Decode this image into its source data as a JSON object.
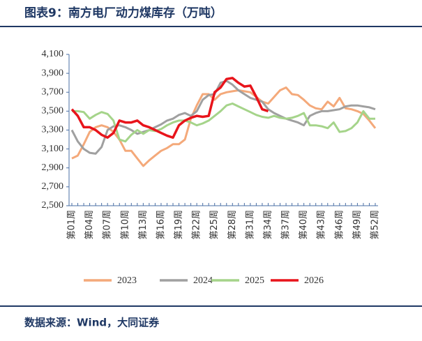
{
  "chart_data": {
    "type": "line",
    "title": "图表9：南方电厂动力煤库存（万吨）",
    "source": "数据来源：Wind，大同证券",
    "categories": [
      "第01周",
      null,
      null,
      "第04周",
      null,
      null,
      "第07周",
      null,
      null,
      "第10周",
      null,
      null,
      "第13周",
      null,
      null,
      "第16周",
      null,
      null,
      "第19周",
      null,
      null,
      "第22周",
      null,
      null,
      "第25周",
      null,
      null,
      "第28周",
      null,
      null,
      "第31周",
      null,
      null,
      "第34周",
      null,
      null,
      "第37周",
      null,
      null,
      "第40周",
      null,
      null,
      "第43周",
      null,
      null,
      "第46周",
      null,
      null,
      "第49周",
      null,
      null,
      "第52周"
    ],
    "ylim": [
      2500,
      4100
    ],
    "yticks": [
      {
        "value": 2500,
        "label": "2,500"
      },
      {
        "value": 2700,
        "label": "2,700"
      },
      {
        "value": 2900,
        "label": "2,900"
      },
      {
        "value": 3100,
        "label": "3,100"
      },
      {
        "value": 3300,
        "label": "3,300"
      },
      {
        "value": 3500,
        "label": "3,500"
      },
      {
        "value": 3700,
        "label": "3,700"
      },
      {
        "value": 3900,
        "label": "3,900"
      },
      {
        "value": 4100,
        "label": "4,100"
      }
    ],
    "series": [
      {
        "name": "2023",
        "color": "#f4a97a",
        "values": [
          3000,
          3030,
          3150,
          3280,
          3330,
          3350,
          3330,
          3280,
          3200,
          3080,
          3080,
          3000,
          2920,
          2980,
          3030,
          3080,
          3110,
          3150,
          3150,
          3200,
          3420,
          3560,
          3680,
          3680,
          3620,
          3680,
          3700,
          3710,
          3720,
          3710,
          3700,
          3650,
          3600,
          3580,
          3650,
          3720,
          3750,
          3680,
          3670,
          3620,
          3560,
          3530,
          3520,
          3600,
          3550,
          3640,
          3530,
          3520,
          3500,
          3470,
          3400,
          3320
        ]
      },
      {
        "name": "2024",
        "color": "#a0a0a0",
        "values": [
          3300,
          3180,
          3100,
          3060,
          3050,
          3120,
          3300,
          3340,
          3350,
          3330,
          3300,
          3260,
          3280,
          3300,
          3330,
          3360,
          3400,
          3420,
          3460,
          3480,
          3450,
          3500,
          3620,
          3670,
          3680,
          3800,
          3820,
          3780,
          3720,
          3680,
          3640,
          3620,
          3600,
          3520,
          3480,
          3450,
          3420,
          3400,
          3380,
          3350,
          3450,
          3480,
          3500,
          3500,
          3510,
          3520,
          3550,
          3560,
          3560,
          3550,
          3540,
          3520
        ]
      },
      {
        "name": "2025",
        "color": "#a5d48a",
        "values": [
          3500,
          3500,
          3490,
          3420,
          3460,
          3490,
          3470,
          3400,
          3200,
          3180,
          3250,
          3300,
          3260,
          3300,
          3290,
          3310,
          3350,
          3380,
          3400,
          3400,
          3380,
          3350,
          3370,
          3400,
          3450,
          3500,
          3560,
          3580,
          3550,
          3520,
          3490,
          3460,
          3440,
          3430,
          3450,
          3430,
          3420,
          3430,
          3450,
          3480,
          3350,
          3350,
          3340,
          3320,
          3380,
          3280,
          3290,
          3320,
          3380,
          3500,
          3420,
          3420
        ]
      },
      {
        "name": "2026",
        "color": "#e8141b",
        "values": [
          3520,
          3450,
          3330,
          3330,
          3300,
          3250,
          3220,
          3270,
          3400,
          3380,
          3380,
          3400,
          3350,
          3330,
          3300,
          3270,
          3240,
          3220,
          3350,
          3400,
          3430,
          3450,
          3440,
          3450,
          3700,
          3750,
          3840,
          3850,
          3800,
          3760,
          3770,
          3650,
          3520,
          3500,
          null,
          null,
          null,
          null,
          null,
          null,
          null,
          null,
          null,
          null,
          null,
          null,
          null,
          null,
          null,
          null,
          null,
          null
        ]
      }
    ]
  }
}
